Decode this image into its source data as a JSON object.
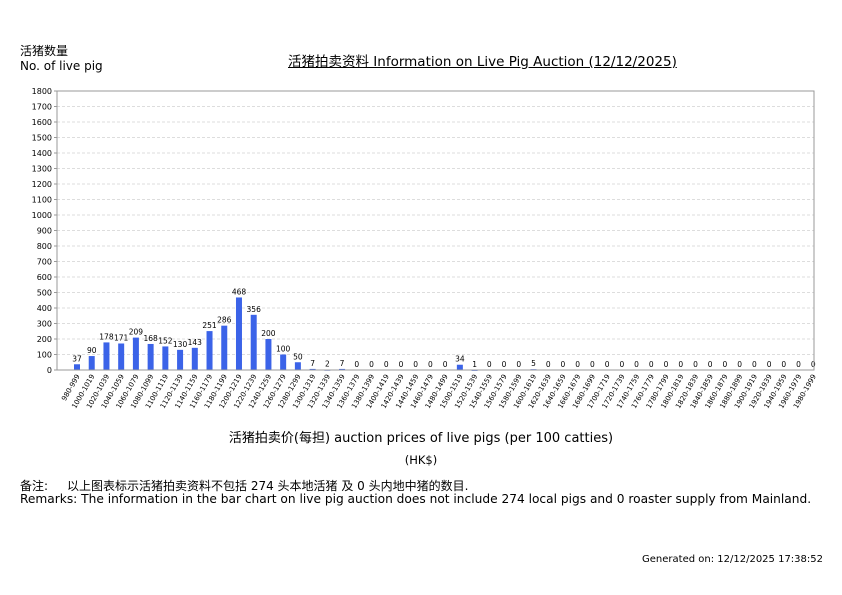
{
  "header": {
    "ylabel_cn": "活猪数量",
    "ylabel_en": "No. of live pig",
    "title": "活猪拍卖资料 Information on Live Pig Auction (12/12/2025)"
  },
  "axis": {
    "xlabel": "活猪拍卖价(每担) auction prices of live pigs (per 100 catties)",
    "xunit": "(HK$)"
  },
  "remarks": {
    "cn_label": "备注:",
    "cn_text": "以上图表标示活猪拍卖资料不包括 274 头本地活猪 及 0 头内地中猪的数目.",
    "en_text": "Remarks: The information in the bar chart on live pig auction does not include 274 local pigs and 0 roaster supply from Mainland."
  },
  "footer": {
    "generated": "Generated on: 12/12/2025 17:38:52"
  },
  "colors": {
    "bar": "#3b63e8",
    "grid": "#dddddd",
    "axis": "#999999"
  },
  "chart_data": {
    "type": "bar",
    "title": "活猪拍卖资料 Information on Live Pig Auction (12/12/2025)",
    "xlabel": "活猪拍卖价(每担) auction prices of live pigs (per 100 catties) (HK$)",
    "ylabel": "活猪数量 No. of live pig",
    "ylim": [
      0,
      1800
    ],
    "yticks": [
      0,
      100,
      200,
      300,
      400,
      500,
      600,
      700,
      800,
      900,
      1000,
      1100,
      1200,
      1300,
      1400,
      1500,
      1600,
      1700,
      1800
    ],
    "grid": true,
    "legend": null,
    "categories": [
      "980-999",
      "1000-1019",
      "1020-1039",
      "1040-1059",
      "1060-1079",
      "1080-1099",
      "1100-1119",
      "1120-1139",
      "1140-1159",
      "1160-1179",
      "1180-1199",
      "1200-1219",
      "1220-1239",
      "1240-1259",
      "1260-1279",
      "1280-1299",
      "1300-1319",
      "1320-1339",
      "1340-1359",
      "1360-1379",
      "1380-1399",
      "1400-1419",
      "1420-1439",
      "1440-1459",
      "1460-1479",
      "1480-1499",
      "1500-1519",
      "1520-1539",
      "1540-1559",
      "1560-1579",
      "1580-1599",
      "1600-1619",
      "1620-1639",
      "1640-1659",
      "1660-1679",
      "1680-1699",
      "1700-1719",
      "1720-1739",
      "1740-1759",
      "1760-1779",
      "1780-1799",
      "1800-1819",
      "1820-1839",
      "1840-1859",
      "1860-1879",
      "1880-1899",
      "1900-1919",
      "1920-1939",
      "1940-1959",
      "1960-1979",
      "1980-1999"
    ],
    "values": [
      37,
      90,
      178,
      171,
      209,
      168,
      152,
      130,
      143,
      251,
      286,
      468,
      356,
      200,
      100,
      50,
      7,
      2,
      7,
      0,
      0,
      0,
      0,
      0,
      0,
      0,
      34,
      1,
      0,
      0,
      0,
      5,
      0,
      0,
      0,
      0,
      0,
      0,
      0,
      0,
      0,
      0,
      0,
      0,
      0,
      0,
      0,
      0,
      0,
      0,
      0
    ]
  }
}
